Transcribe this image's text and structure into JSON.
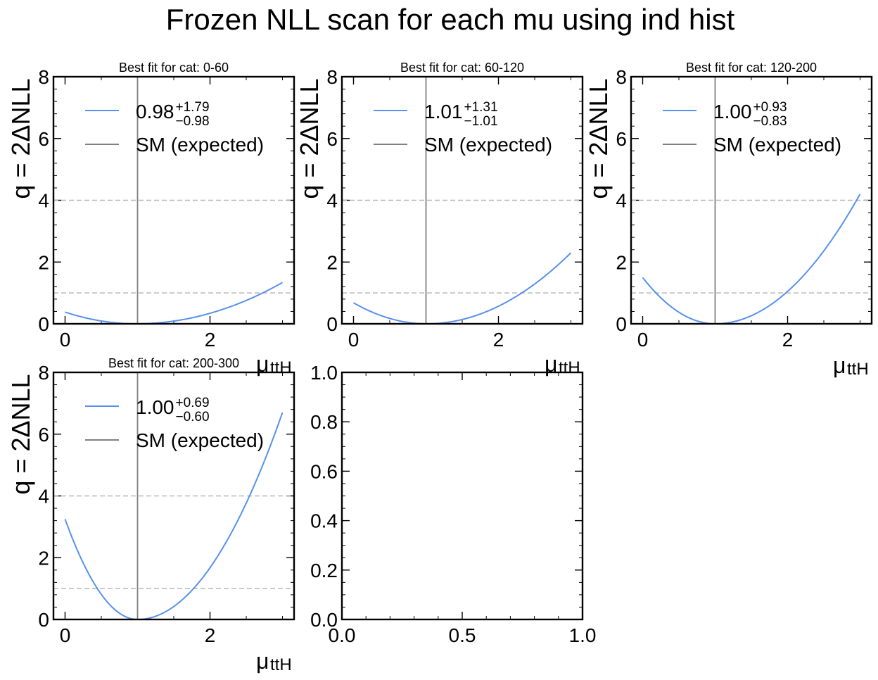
{
  "figure_title": "Frozen NLL scan for each mu using ind hist",
  "colors": {
    "curve": "#5890ef",
    "sm_line": "#808080",
    "threshold": "#b8b8b8",
    "axes": "#000000"
  },
  "chart_data": [
    {
      "type": "line",
      "title": "Best fit for cat: 0-60",
      "xlabel": "μ",
      "xlabel_sub": "ttH",
      "ylabel": "q = 2ΔNLL",
      "xlim": [
        -0.16,
        3.16
      ],
      "ylim": [
        0,
        8
      ],
      "xticks": [
        0,
        2
      ],
      "yticks": [
        0,
        2,
        4,
        6,
        8
      ],
      "xminor": 0.5,
      "yminor": 0.4,
      "thresholds": [
        1,
        4
      ],
      "sm_value": 1,
      "legend_loc": "upper-left",
      "best_fit": {
        "central": "0.98",
        "up": "+1.79",
        "down": "−0.98"
      },
      "sm_label": "SM (expected)",
      "series": [
        {
          "x": [
            0,
            0.98,
            2,
            3
          ],
          "y": [
            0.38,
            0,
            0.35,
            1.3
          ],
          "kind": "asym-parabola",
          "min": 0.98,
          "left_a": 0.396,
          "right_a": 0.3276
        }
      ]
    },
    {
      "type": "line",
      "title": "Best fit for cat: 60-120",
      "xlabel": "μ",
      "xlabel_sub": "ttH",
      "ylabel": "q = 2ΔNLL",
      "xlim": [
        -0.16,
        3.16
      ],
      "ylim": [
        0,
        8
      ],
      "xticks": [
        0,
        2
      ],
      "yticks": [
        0,
        2,
        4,
        6,
        8
      ],
      "xminor": 0.5,
      "yminor": 0.4,
      "thresholds": [
        1,
        4
      ],
      "sm_value": 1,
      "legend_loc": "upper-left",
      "best_fit": {
        "central": "1.01",
        "up": "+1.31",
        "down": "−1.01"
      },
      "sm_label": "SM (expected)",
      "series": [
        {
          "x": [
            0,
            1.01,
            2,
            3
          ],
          "y": [
            0.68,
            0,
            0.6,
            2.3
          ],
          "kind": "asym-parabola",
          "min": 1.01,
          "left_a": 0.667,
          "right_a": 0.5808
        }
      ]
    },
    {
      "type": "line",
      "title": "Best fit for cat: 120-200",
      "xlabel": "μ",
      "xlabel_sub": "ttH",
      "ylabel": "q = 2ΔNLL",
      "xlim": [
        -0.16,
        3.16
      ],
      "ylim": [
        0,
        8
      ],
      "xticks": [
        0,
        2
      ],
      "yticks": [
        0,
        2,
        4,
        6,
        8
      ],
      "xminor": 0.5,
      "yminor": 0.4,
      "thresholds": [
        1,
        4
      ],
      "sm_value": 1,
      "legend_loc": "upper-left",
      "best_fit": {
        "central": "1.00",
        "up": "+0.93",
        "down": "−0.83"
      },
      "sm_label": "SM (expected)",
      "series": [
        {
          "x": [
            0,
            1,
            2,
            3
          ],
          "y": [
            1.5,
            0,
            1.05,
            4.2
          ],
          "kind": "asym-parabola",
          "min": 1.0,
          "left_a": 1.5,
          "right_a": 1.05
        }
      ]
    },
    {
      "type": "line",
      "title": "Best fit for cat: 200-300",
      "xlabel": "μ",
      "xlabel_sub": "ttH",
      "ylabel": "q = 2ΔNLL",
      "xlim": [
        -0.16,
        3.16
      ],
      "ylim": [
        0,
        8
      ],
      "xticks": [
        0,
        2
      ],
      "yticks": [
        0,
        2,
        4,
        6,
        8
      ],
      "xminor": 0.5,
      "yminor": 0.4,
      "thresholds": [
        1,
        4
      ],
      "sm_value": 1,
      "legend_loc": "upper-left",
      "best_fit": {
        "central": "1.00",
        "up": "+0.69",
        "down": "−0.60"
      },
      "sm_label": "SM (expected)",
      "series": [
        {
          "x": [
            0,
            1,
            2,
            3
          ],
          "y": [
            3.25,
            0,
            1.7,
            6.7
          ],
          "kind": "asym-parabola",
          "min": 1.0,
          "left_a": 3.25,
          "right_a": 1.675
        }
      ]
    },
    {
      "type": "empty",
      "title": "",
      "xlim": [
        0,
        1
      ],
      "ylim": [
        0,
        1
      ],
      "xticks": [
        0,
        0.5,
        1
      ],
      "xticklabels": [
        "0.0",
        "0.5",
        "1.0"
      ],
      "yticks": [
        0,
        0.2,
        0.4,
        0.6,
        0.8,
        1
      ],
      "yticklabels": [
        "0.0",
        "0.2",
        "0.4",
        "0.6",
        "0.8",
        "1.0"
      ],
      "xminor": 0.1,
      "yminor": 0.05
    }
  ]
}
